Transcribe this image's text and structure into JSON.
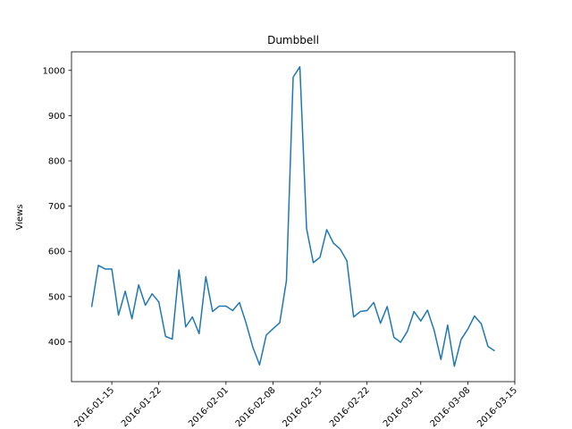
{
  "chart_data": {
    "type": "line",
    "title": "Dumbbell",
    "y_label": "Views",
    "x": [
      "2016-01-12",
      "2016-01-13",
      "2016-01-14",
      "2016-01-15",
      "2016-01-16",
      "2016-01-17",
      "2016-01-18",
      "2016-01-19",
      "2016-01-20",
      "2016-01-21",
      "2016-01-22",
      "2016-01-23",
      "2016-01-24",
      "2016-01-25",
      "2016-01-26",
      "2016-01-27",
      "2016-01-28",
      "2016-01-29",
      "2016-01-30",
      "2016-01-31",
      "2016-02-01",
      "2016-02-02",
      "2016-02-03",
      "2016-02-04",
      "2016-02-05",
      "2016-02-06",
      "2016-02-07",
      "2016-02-08",
      "2016-02-09",
      "2016-02-10",
      "2016-02-11",
      "2016-02-12",
      "2016-02-13",
      "2016-02-14",
      "2016-02-15",
      "2016-02-16",
      "2016-02-17",
      "2016-02-18",
      "2016-02-19",
      "2016-02-20",
      "2016-02-21",
      "2016-02-22",
      "2016-02-23",
      "2016-02-24",
      "2016-02-25",
      "2016-02-26",
      "2016-02-27",
      "2016-02-28",
      "2016-02-29",
      "2016-03-01",
      "2016-03-02",
      "2016-03-03",
      "2016-03-04",
      "2016-03-05",
      "2016-03-06",
      "2016-03-07",
      "2016-03-08",
      "2016-03-09",
      "2016-03-10",
      "2016-03-11",
      "2016-03-12"
    ],
    "series": [
      {
        "color": "#1f77b4",
        "values": [
          477,
          569,
          561,
          561,
          459,
          512,
          451,
          526,
          481,
          506,
          488,
          412,
          406,
          559,
          433,
          455,
          418,
          544,
          467,
          479,
          479,
          469,
          487,
          441,
          388,
          349,
          415,
          429,
          442,
          535,
          985,
          1008,
          650,
          575,
          587,
          648,
          618,
          605,
          579,
          455,
          467,
          469,
          487,
          441,
          478,
          410,
          399,
          423,
          467,
          446,
          470,
          425,
          361,
          437,
          346,
          405,
          428,
          457,
          440,
          390,
          380
        ]
      }
    ],
    "xlim": [
      "2016-01-09",
      "2016-03-15"
    ],
    "xticks": [
      "2016-01-15",
      "2016-01-22",
      "2016-02-01",
      "2016-02-08",
      "2016-02-15",
      "2016-02-22",
      "2016-03-01",
      "2016-03-08",
      "2016-03-15"
    ],
    "ylim": [
      312,
      1041
    ],
    "yticks": [
      400,
      500,
      600,
      700,
      800,
      900,
      1000
    ]
  }
}
